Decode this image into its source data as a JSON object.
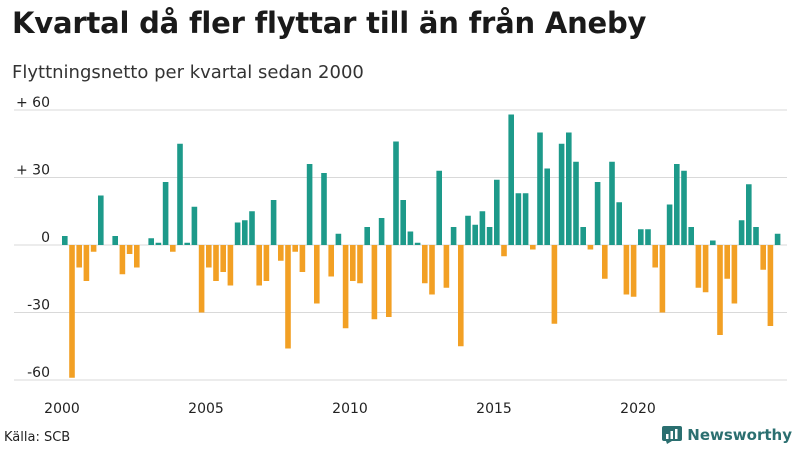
{
  "title": "Kvartal då fler flyttar till än från Aneby",
  "subtitle": "Flyttningsnetto per kvartal sedan 2000",
  "source": "Källa: SCB",
  "brand": {
    "name": "Newsworthy",
    "icon": "bar-chart-logo-icon"
  },
  "colors": {
    "positive": "#1d9a8a",
    "negative": "#f2a024",
    "grid": "#d9d9d9",
    "brand": "#2b6f70"
  },
  "chart_data": {
    "type": "bar",
    "x_start": "2000 Q1",
    "ylim": [
      -60,
      60
    ],
    "y_ticks": [
      {
        "value": 60,
        "label": "+ 60"
      },
      {
        "value": 30,
        "label": "+ 30"
      },
      {
        "value": 0,
        "label": "0"
      },
      {
        "value": -30,
        "label": "-30"
      },
      {
        "value": -60,
        "label": "-60"
      }
    ],
    "x_ticks": [
      {
        "year": 2000,
        "label": "2000"
      },
      {
        "year": 2005,
        "label": "2005"
      },
      {
        "year": 2010,
        "label": "2010"
      },
      {
        "year": 2015,
        "label": "2015"
      },
      {
        "year": 2020,
        "label": "2020"
      }
    ],
    "values": [
      4,
      -59,
      -10,
      -16,
      -3,
      22,
      0,
      4,
      -13,
      -4,
      -10,
      0,
      3,
      1,
      28,
      -3,
      45,
      1,
      17,
      -30,
      -10,
      -16,
      -12,
      -18,
      10,
      11,
      15,
      -18,
      -16,
      20,
      -7,
      -46,
      -3,
      -12,
      36,
      -26,
      32,
      -14,
      5,
      -37,
      -16,
      -17,
      8,
      -33,
      12,
      -32,
      46,
      20,
      6,
      1,
      -17,
      -22,
      33,
      -19,
      8,
      -45,
      13,
      9,
      15,
      8,
      29,
      -5,
      58,
      23,
      23,
      -2,
      50,
      34,
      -35,
      45,
      50,
      37,
      8,
      -2,
      28,
      -15,
      37,
      19,
      -22,
      -23,
      7,
      7,
      -10,
      -30,
      18,
      36,
      33,
      8,
      -19,
      -21,
      2,
      -40,
      -15,
      -26,
      11,
      27,
      8,
      -11,
      -36,
      5
    ]
  }
}
